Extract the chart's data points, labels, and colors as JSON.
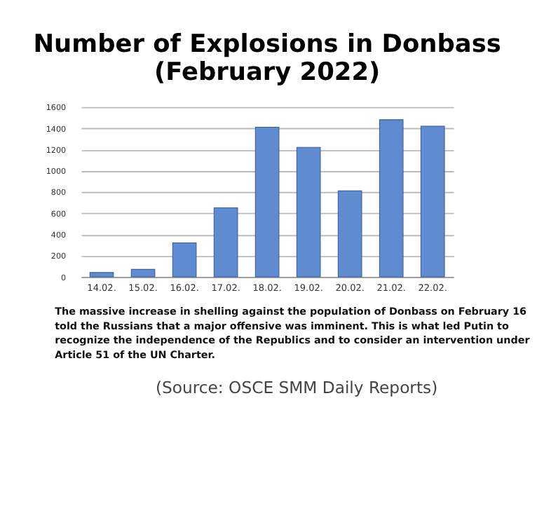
{
  "chart_data": {
    "type": "bar",
    "title": "Number of Explosions in Donbass\n(February 2022)",
    "categories": [
      "14.02.",
      "15.02.",
      "16.02.",
      "17.02.",
      "18.02.",
      "19.02.",
      "20.02.",
      "21.02.",
      "22.02."
    ],
    "values": [
      40,
      70,
      320,
      650,
      1410,
      1220,
      810,
      1480,
      1420
    ],
    "color": "#5f8bd0",
    "ylim": [
      0,
      1600
    ],
    "yticks": [
      0,
      200,
      400,
      600,
      800,
      1000,
      1200,
      1400,
      1600
    ],
    "grid": "y",
    "annotations": [
      "The massive increase in shelling against the population of Donbass on February 16 told the Russians that a major offensive was imminent. This is what led Putin to recognize the independence of the Republics and to consider an intervention under Article 51 of the UN Charter.",
      "(Source: OSCE SMM Daily Reports)"
    ]
  }
}
